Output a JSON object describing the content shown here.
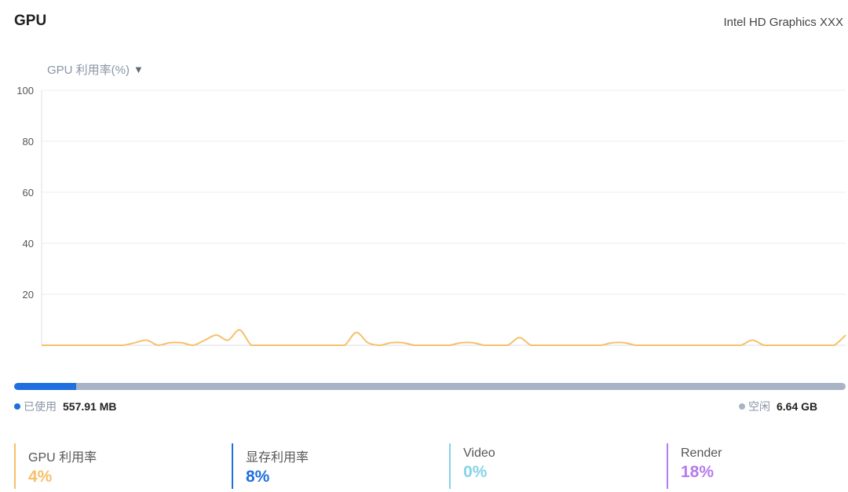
{
  "header": {
    "title": "GPU",
    "gpu_model": "Intel HD Graphics XXX"
  },
  "metric_selector": {
    "label": "GPU 利用率(%)",
    "caret": "▼"
  },
  "colors": {
    "line": "#f7c06b",
    "grid": "#ebeef3",
    "axis": "#dcdfe6",
    "memory_used": "#1f6fde",
    "memory_free": "#a8b4c6",
    "gpu_util": "#f7c06b",
    "mem_util": "#1f6fde",
    "video": "#86d3e8",
    "render": "#b57bed"
  },
  "chart_data": {
    "type": "line",
    "ylim": [
      0,
      100
    ],
    "y_ticks": [
      "100",
      "80",
      "60",
      "40",
      "20"
    ],
    "grid": true,
    "series": [
      {
        "values": [
          0,
          0,
          0,
          0,
          0,
          0,
          0,
          0,
          1,
          2,
          0,
          1,
          1,
          0,
          2,
          4,
          2,
          6,
          0,
          0,
          0,
          0,
          0,
          0,
          0,
          0,
          0,
          5,
          1,
          0,
          1,
          1,
          0,
          0,
          0,
          0,
          1,
          1,
          0,
          0,
          0,
          3,
          0,
          0,
          0,
          0,
          0,
          0,
          0,
          1,
          1,
          0,
          0,
          0,
          0,
          0,
          0,
          0,
          0,
          0,
          0,
          2,
          0,
          0,
          0,
          0,
          0,
          0,
          0,
          4
        ]
      }
    ]
  },
  "memory": {
    "used_fraction": 0.075,
    "used_label": "已使用",
    "used_value": "557.91 MB",
    "free_label": "空闲",
    "free_value": "6.64 GB"
  },
  "stats": [
    {
      "label": "GPU 利用率",
      "value": "4%"
    },
    {
      "label": "显存利用率",
      "value": "8%"
    },
    {
      "label": "Video",
      "value": "0%"
    },
    {
      "label": "Render",
      "value": "18%"
    }
  ]
}
